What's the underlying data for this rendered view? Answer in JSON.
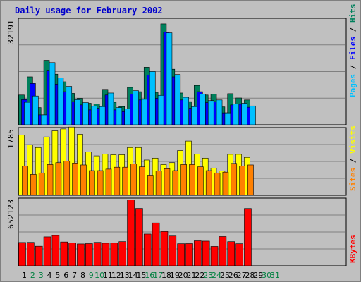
{
  "title": "Daily usage for February 2002",
  "colors": {
    "background": "#c0c0c0",
    "title": "#0000cc",
    "hits": "#00805c",
    "files": "#0000ff",
    "pages": "#00c0ff",
    "visits": "#ffff00",
    "sites": "#ff8000",
    "kbytes": "#ff0000",
    "weekday_label": "#000000",
    "weekend_label": "#008040"
  },
  "chart_data": {
    "type": "bar",
    "days": [
      1,
      2,
      3,
      4,
      5,
      6,
      7,
      8,
      9,
      10,
      11,
      12,
      13,
      14,
      15,
      16,
      17,
      18,
      19,
      20,
      21,
      22,
      23,
      24,
      25,
      26,
      27,
      28,
      29,
      30,
      31
    ],
    "weekend_days": [
      2,
      3,
      9,
      10,
      16,
      17,
      23,
      24,
      30,
      31
    ],
    "top": {
      "ymax_label": "32191",
      "ylim": [
        0,
        32191
      ],
      "axis_label_parts": [
        {
          "text": "Pages",
          "color": "#00c0ff"
        },
        {
          "text": " / ",
          "color": "#000000"
        },
        {
          "text": "Files",
          "color": "#0000ff"
        },
        {
          "text": " / ",
          "color": "#000000"
        },
        {
          "text": "Hits",
          "color": "#00805c"
        }
      ],
      "series": [
        {
          "name": "Hits",
          "color": "#00805c",
          "values": [
            9000,
            14500,
            5200,
            19500,
            15300,
            13000,
            9500,
            8000,
            6500,
            6300,
            10700,
            6800,
            5500,
            11300,
            10000,
            17400,
            9800,
            30500,
            16800,
            9600,
            7000,
            11900,
            9000,
            9300,
            5400,
            9400,
            8100,
            7500,
            0,
            0,
            0
          ]
        },
        {
          "name": "Files",
          "color": "#0000ff",
          "values": [
            7600,
            12500,
            3000,
            16500,
            12300,
            10000,
            7000,
            6000,
            4500,
            5000,
            9000,
            4500,
            4000,
            9300,
            7500,
            15000,
            8000,
            28000,
            14500,
            7500,
            5000,
            10000,
            6700,
            7000,
            3600,
            6000,
            6200,
            5300,
            0,
            0,
            0
          ]
        },
        {
          "name": "Pages",
          "color": "#00c0ff",
          "values": [
            6800,
            8700,
            3000,
            18800,
            14200,
            11600,
            7600,
            6700,
            5600,
            5500,
            9600,
            5200,
            4800,
            10300,
            7700,
            16100,
            8900,
            27800,
            15200,
            8300,
            5500,
            9300,
            7300,
            7500,
            3600,
            6300,
            6500,
            5700,
            0,
            0,
            0
          ]
        }
      ]
    },
    "middle": {
      "ymax_label": "1785",
      "ylim": [
        0,
        1785
      ],
      "axis_label_parts": [
        {
          "text": "Sites",
          "color": "#ff8000"
        },
        {
          "text": " / ",
          "color": "#000000"
        },
        {
          "text": "Visits",
          "color": "#ffff00"
        }
      ],
      "series": [
        {
          "name": "Visits",
          "color": "#ffff00",
          "values": [
            1590,
            1330,
            1260,
            1540,
            1700,
            1750,
            1800,
            1610,
            1140,
            1040,
            1090,
            1070,
            1070,
            1260,
            1260,
            930,
            980,
            810,
            860,
            1180,
            1430,
            1090,
            980,
            720,
            640,
            1080,
            1080,
            1000,
            0,
            0,
            0
          ]
        },
        {
          "name": "Sites",
          "color": "#ff8000",
          "values": [
            770,
            550,
            590,
            810,
            860,
            900,
            850,
            800,
            650,
            650,
            690,
            740,
            740,
            830,
            750,
            530,
            640,
            700,
            650,
            810,
            810,
            750,
            650,
            590,
            610,
            840,
            770,
            800,
            0,
            0,
            0
          ]
        }
      ]
    },
    "bottom": {
      "ymax_label": "652123",
      "ylim": [
        0,
        652123
      ],
      "axis_label_parts": [
        {
          "text": "KBytes",
          "color": "#ff0000"
        }
      ],
      "series": [
        {
          "name": "KBytes",
          "color": "#ff0000",
          "values": [
            225000,
            226000,
            189000,
            279000,
            292000,
            230000,
            222000,
            211000,
            214000,
            226000,
            218000,
            219000,
            233000,
            635000,
            553000,
            306000,
            413000,
            330000,
            287000,
            213000,
            214000,
            241000,
            238000,
            187000,
            282000,
            233000,
            213000,
            552000,
            0,
            0,
            0
          ]
        }
      ]
    }
  }
}
